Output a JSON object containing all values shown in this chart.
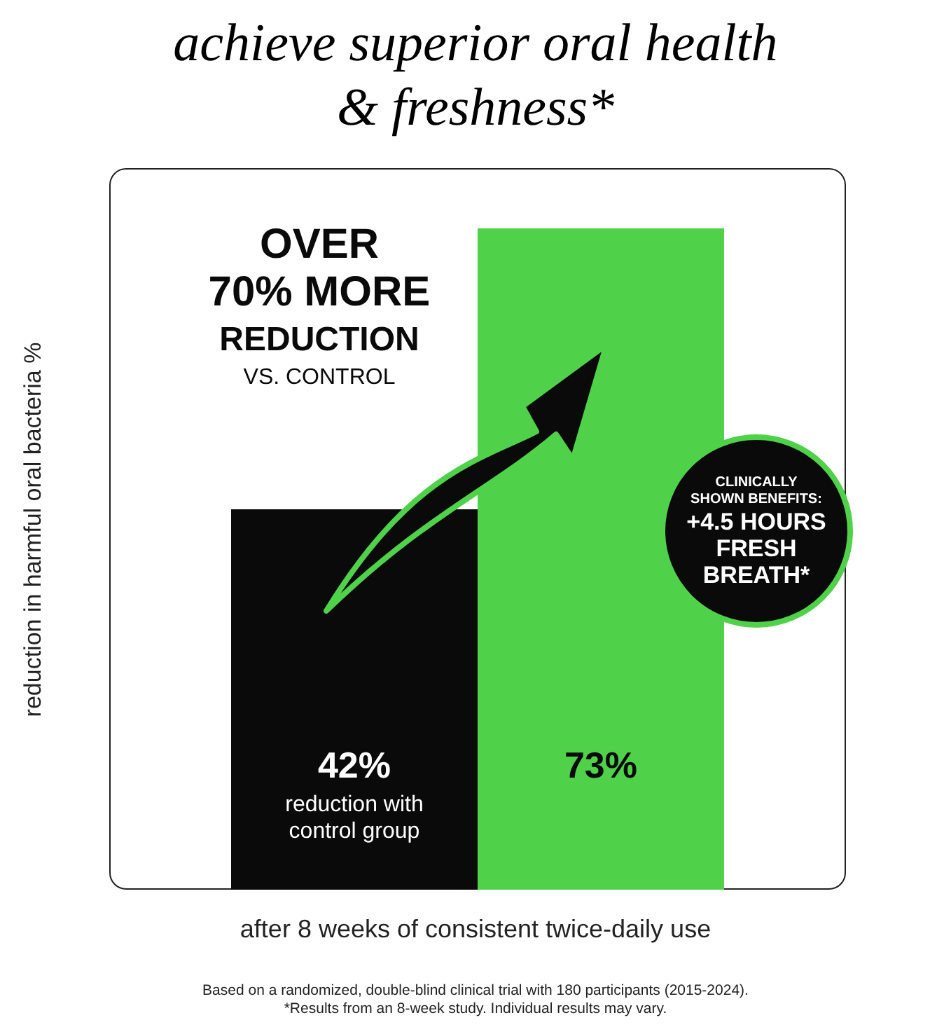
{
  "chart_data": {
    "type": "bar",
    "title": "achieve superior oral health\n& freshness*",
    "xlabel": "after 8 weeks of consistent twice-daily use",
    "ylabel": "reduction in harmful oral bacteria %",
    "categories": [
      "reduction with\ncontrol group",
      null
    ],
    "values": [
      42,
      73
    ],
    "colors": [
      "#0a0a0a",
      "#4fd14a"
    ],
    "value_labels": [
      "42%",
      "73%"
    ],
    "annotations": [
      "OVER\n70% MORE\nREDUCTION\nVS. CONTROL",
      "CLINICALLY\nSHOWN BENEFITS:\n+4.5 HOURS\nFRESH\nBREATH*",
      "Based on a randomized, double-blind clinical trial with 180 participants (2015-2024).",
      "*Results from an 8-week study. Individual results may vary."
    ]
  }
}
